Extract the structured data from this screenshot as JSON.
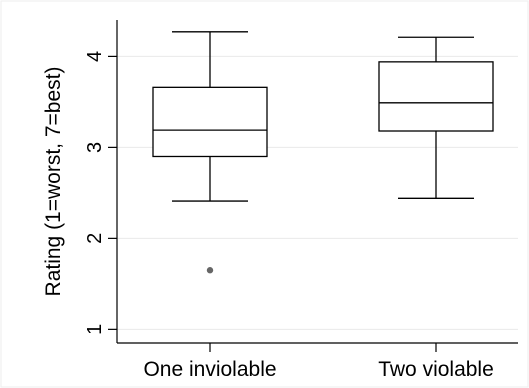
{
  "chart_data": {
    "type": "box",
    "title": "",
    "xlabel": "",
    "ylabel": "Rating (1=worst, 7=best)",
    "ylim": [
      0.85,
      4.4
    ],
    "yticks": [
      1,
      2,
      3,
      4
    ],
    "grid": "horizontal",
    "categories": [
      "One inviolable",
      "Two violable"
    ],
    "boxes": [
      {
        "category": "One inviolable",
        "whisker_low": 2.41,
        "q1": 2.9,
        "median": 3.19,
        "q3": 3.66,
        "whisker_high": 4.27,
        "outliers": [
          1.65
        ]
      },
      {
        "category": "Two violable",
        "whisker_low": 2.44,
        "q1": 3.18,
        "median": 3.49,
        "q3": 3.94,
        "whisker_high": 4.21,
        "outliers": []
      }
    ],
    "colors": {
      "box_stroke": "#000000",
      "box_fill": "#ffffff",
      "grid": "#eaeaea",
      "outlier": "#666666",
      "frame": "#eeeeee"
    }
  }
}
